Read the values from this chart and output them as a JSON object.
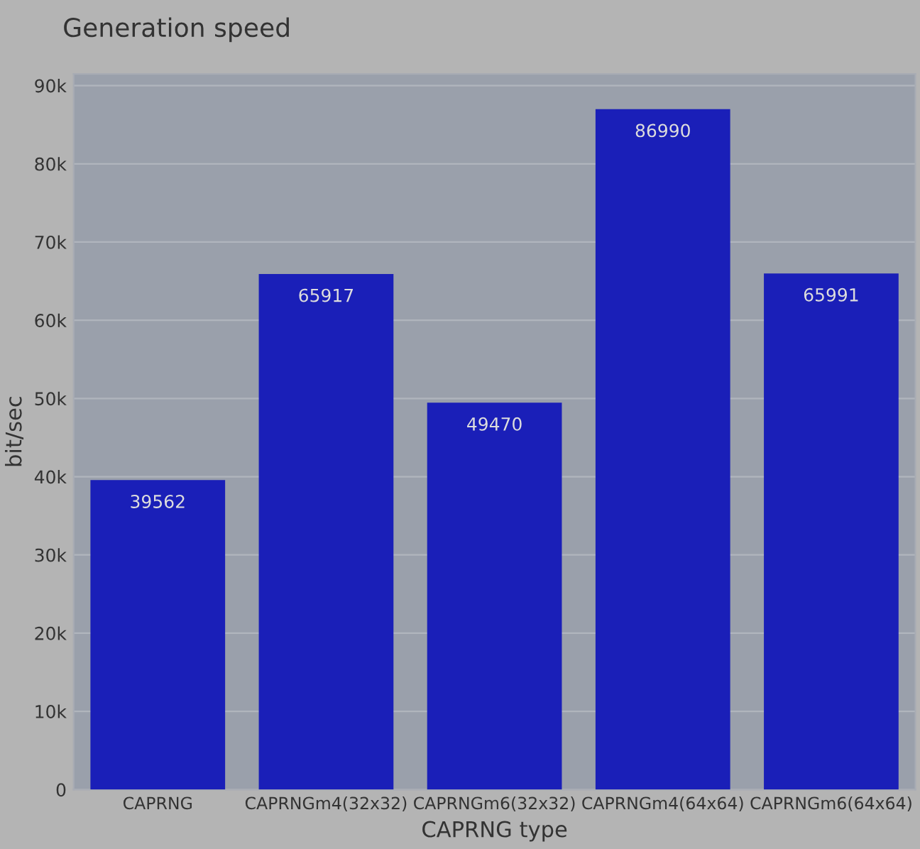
{
  "chart_data": {
    "type": "bar",
    "title": "Generation speed",
    "xlabel": "CAPRNG type",
    "ylabel": "bit/sec",
    "categories": [
      "CAPRNG",
      "CAPRNGm4(32x32)",
      "CAPRNGm6(32x32)",
      "CAPRNGm4(64x64)",
      "CAPRNGm6(64x64)"
    ],
    "values": [
      39562,
      65917,
      49470,
      86990,
      65991
    ],
    "color": "#1a1fb8",
    "ylim": [
      0,
      91500
    ],
    "yticks": [
      {
        "value": 0,
        "label": "0"
      },
      {
        "value": 10000,
        "label": "10k"
      },
      {
        "value": 20000,
        "label": "20k"
      },
      {
        "value": 30000,
        "label": "30k"
      },
      {
        "value": 40000,
        "label": "40k"
      },
      {
        "value": 50000,
        "label": "50k"
      },
      {
        "value": 60000,
        "label": "60k"
      },
      {
        "value": 70000,
        "label": "70k"
      },
      {
        "value": 80000,
        "label": "80k"
      },
      {
        "value": 90000,
        "label": "90k"
      }
    ],
    "grid": "y",
    "data_labels": true
  }
}
